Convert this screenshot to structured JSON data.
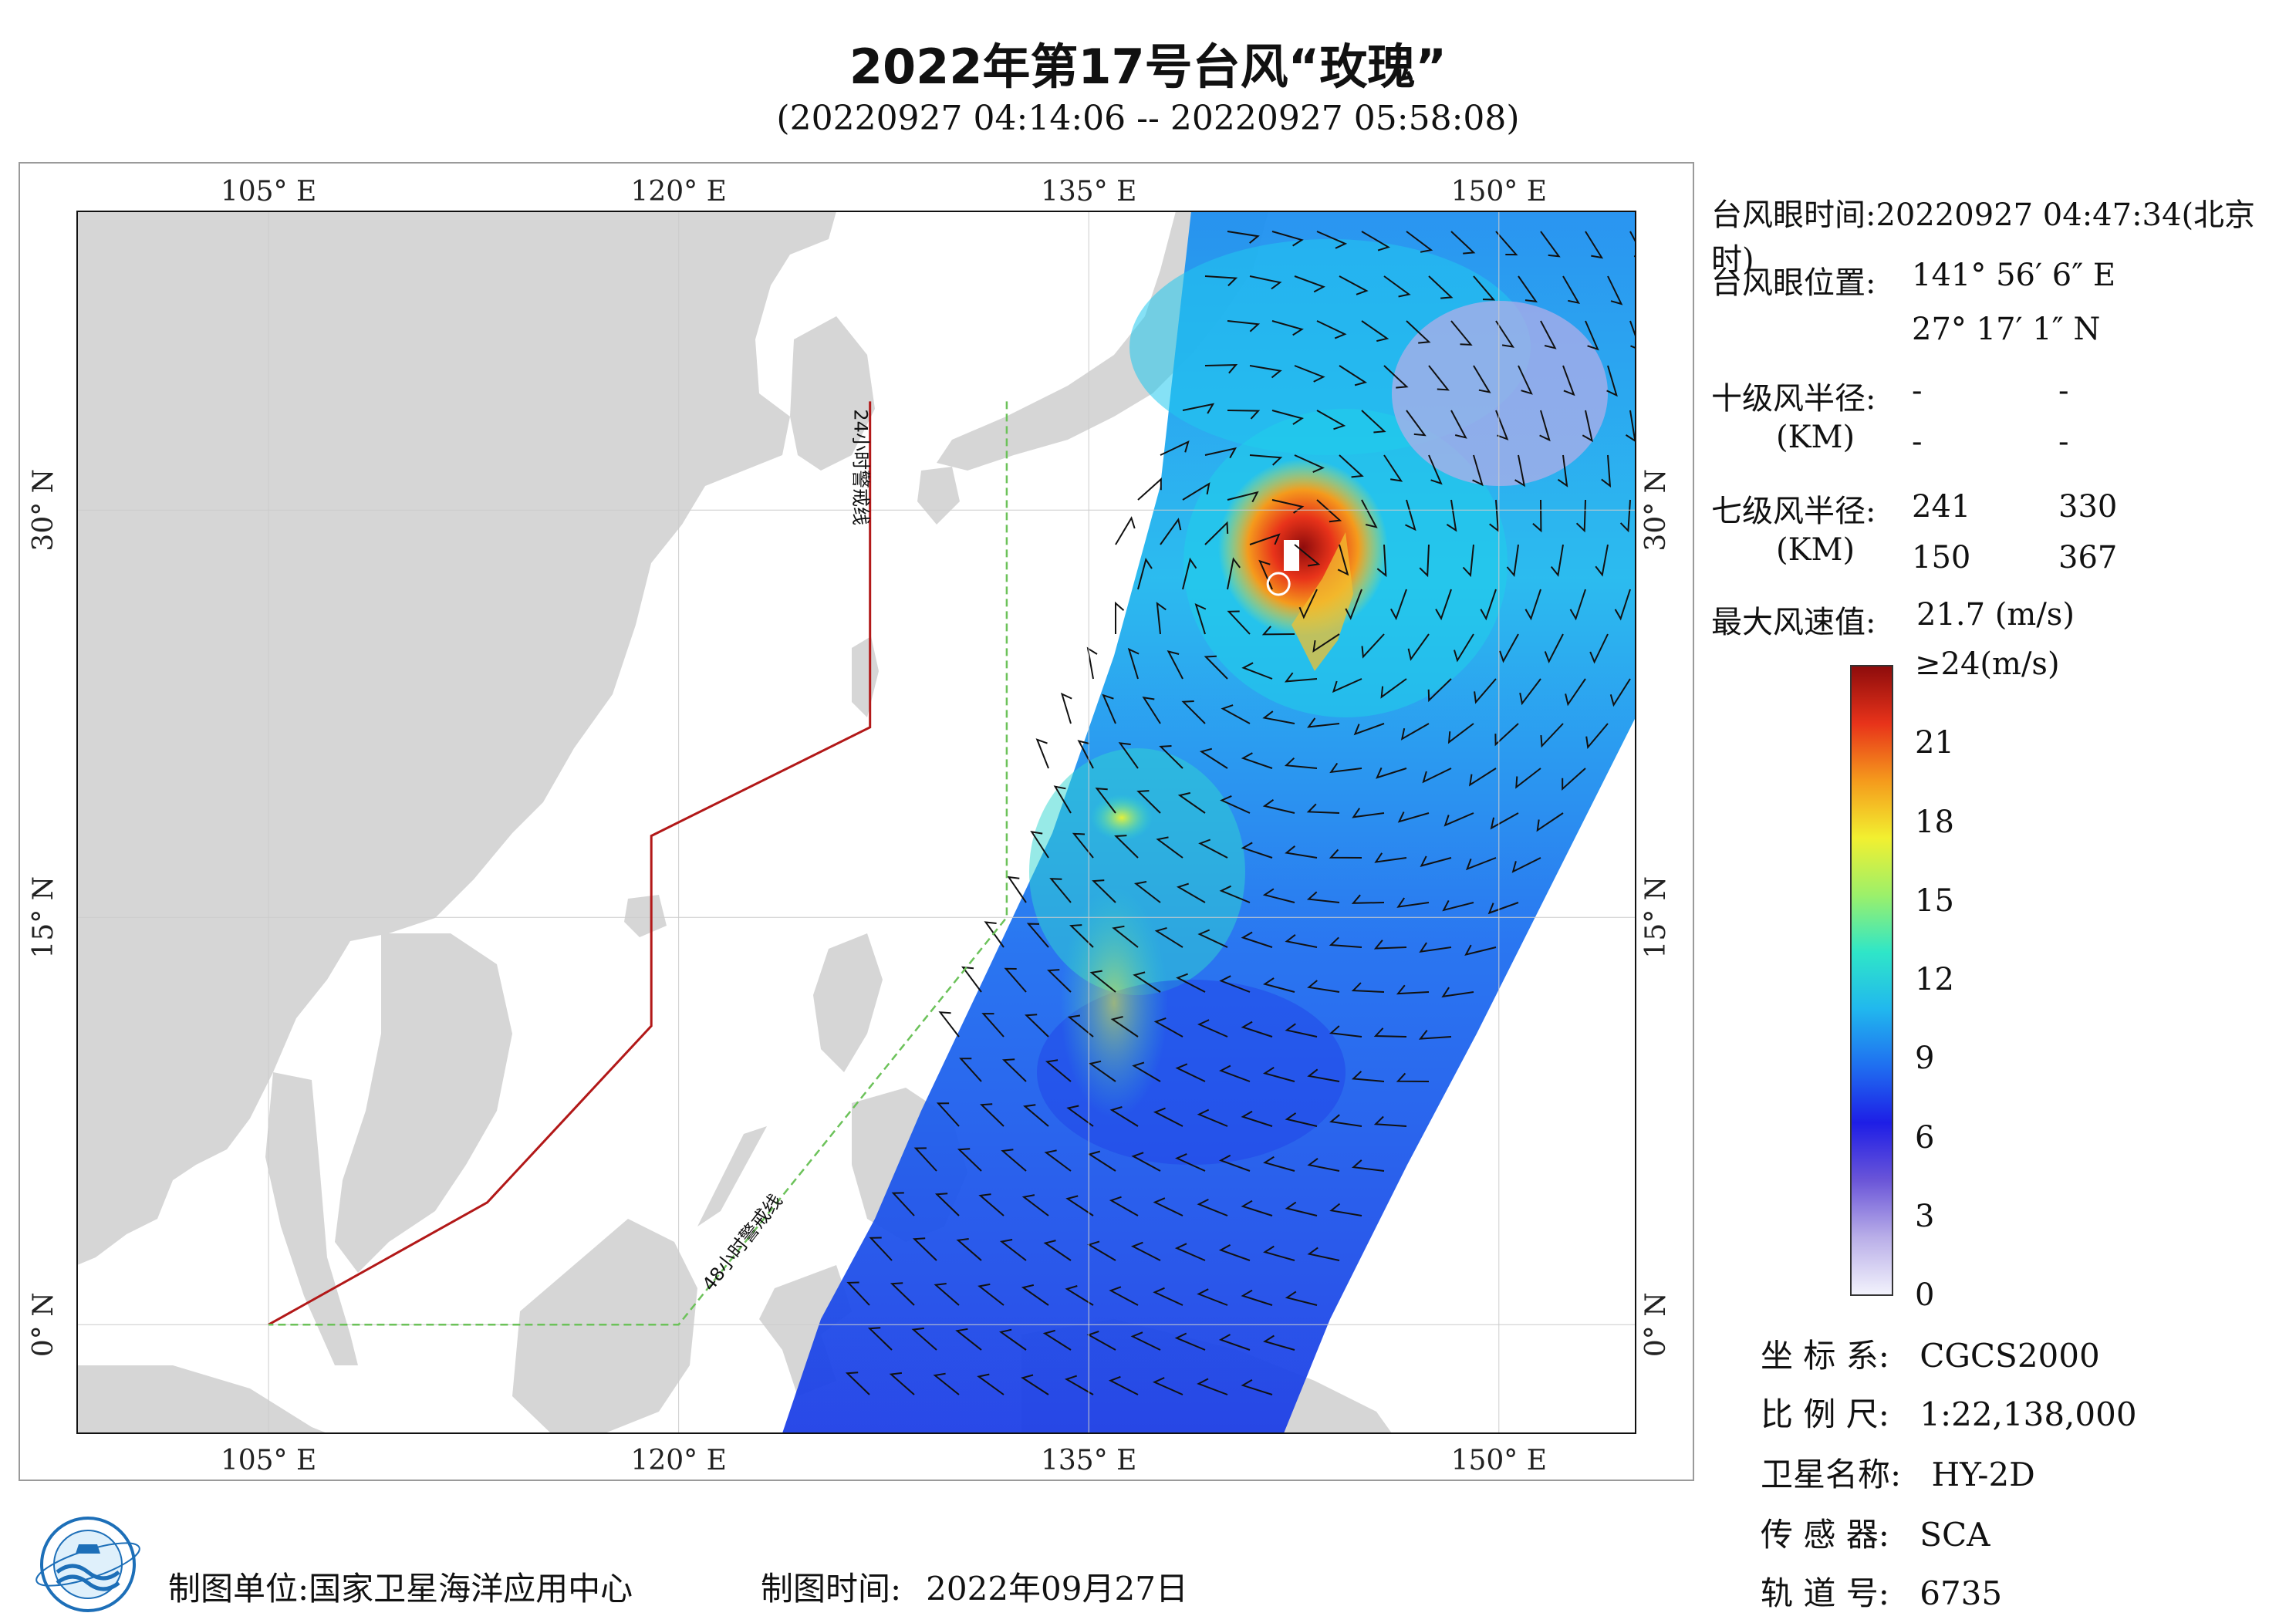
{
  "title": "2022年第17号台风“玫瑰”",
  "subtitle": "(20220927 04:14:06 -- 20220927 05:58:08)",
  "map": {
    "lon_labels": [
      "105° E",
      "120° E",
      "135° E",
      "150° E"
    ],
    "lat_labels": [
      "30° N",
      "15° N",
      "0° N"
    ],
    "lon_values": [
      105,
      120,
      135,
      150
    ],
    "lat_values": [
      30,
      15,
      0
    ],
    "lon_range": [
      98,
      155
    ],
    "lat_range": [
      -4,
      41
    ],
    "warning_24h_label": "24小时警戒线",
    "warning_48h_label": "48小时警戒线",
    "warning_24h": [
      [
        127,
        34
      ],
      [
        127,
        22
      ],
      [
        119,
        18
      ],
      [
        119,
        11
      ],
      [
        113,
        4.5
      ],
      [
        105,
        0
      ]
    ],
    "warning_48h": [
      [
        132,
        34
      ],
      [
        132,
        15
      ],
      [
        120,
        0
      ],
      [
        105,
        0
      ]
    ],
    "typhoon_eye": [
      141.94,
      27.28
    ],
    "colors": {
      "land": "#d6d6d6",
      "ocean": "#ffffff",
      "warning_24h": "#b21818",
      "warning_48h": "#6cc25a"
    }
  },
  "info": {
    "eye_time_label": "台风眼时间:",
    "eye_time_value": "20220927 04:47:34(北京时)",
    "eye_pos_label": "台风眼位置:",
    "eye_lon": "141° 56′ 6″ E",
    "eye_lat": "27° 17′ 1″ N",
    "r10_label": "十级风半径:",
    "r10_unit": "(KM)",
    "r10_values": [
      "-",
      "-",
      "-",
      "-"
    ],
    "r7_label": "七级风半径:",
    "r7_unit": "(KM)",
    "r7_values": [
      "241",
      "330",
      "150",
      "367"
    ],
    "max_label": "最大风速值:",
    "max_value": "21.7 (m/s)"
  },
  "colorbar": {
    "labels": [
      "≥24(m/s)",
      "21",
      "18",
      "15",
      "12",
      "9",
      "6",
      "3",
      "0"
    ],
    "values": [
      24,
      21,
      18,
      15,
      12,
      9,
      6,
      3,
      0
    ],
    "colors": [
      "#f2f2fc",
      "#b9aee8",
      "#6a55d8",
      "#1e1ee6",
      "#1f6ff0",
      "#21b8ee",
      "#2fe6c8",
      "#9cf06a",
      "#f2f030",
      "#f59a1c",
      "#e8331a",
      "#8e0c0c"
    ]
  },
  "meta": {
    "crs_label": "坐 标 系:",
    "crs_value": "CGCS2000",
    "scale_label": "比 例 尺:",
    "scale_value": "1:22,138,000",
    "sat_label": "卫星名称:",
    "sat_value": "HY-2D",
    "sensor_label": "传 感 器:",
    "sensor_value": "SCA",
    "orbit_label": "轨 道 号:",
    "orbit_value": "6735"
  },
  "footer": {
    "org_label": "制图单位:",
    "org_value": "国家卫星海洋应用中心",
    "date_label": "制图时间:",
    "date_value": "2022年09月27日"
  }
}
